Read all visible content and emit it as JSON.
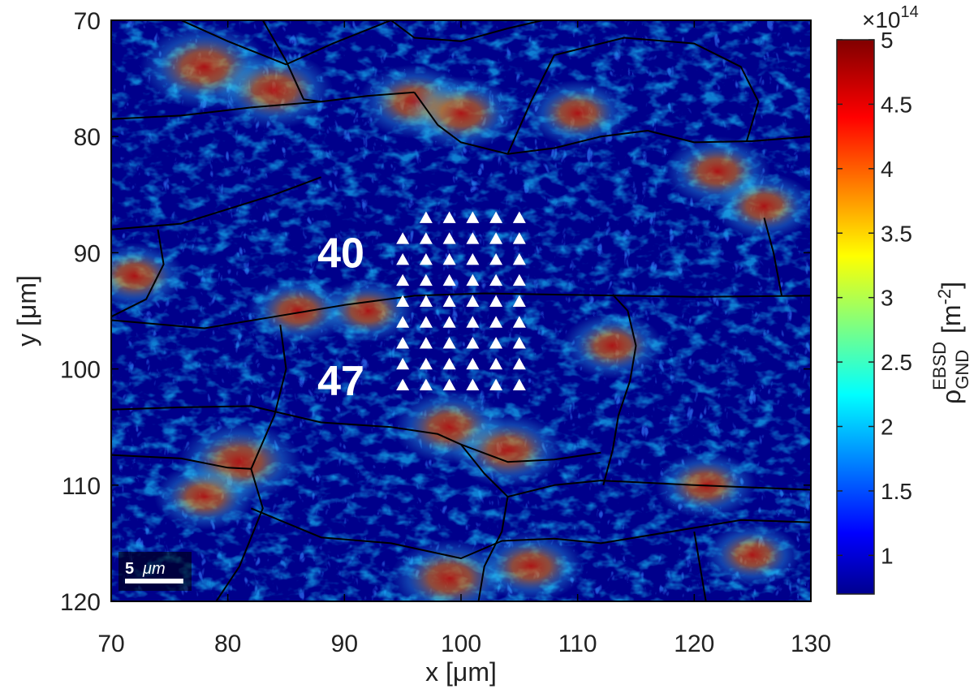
{
  "chart_data": {
    "type": "heatmap",
    "title": "",
    "xlabel": "x [μm]",
    "ylabel": "y [μm]",
    "xlim": [
      70,
      130
    ],
    "ylim": [
      120,
      70
    ],
    "y_axis_reversed": true,
    "xticks": [
      70,
      80,
      90,
      100,
      110,
      120,
      130
    ],
    "yticks": [
      70,
      80,
      90,
      100,
      110,
      120
    ],
    "grid": false,
    "colormap": "jet",
    "colorbar": {
      "label_main": "ρ",
      "label_sub": "GND",
      "label_sup": "EBSD",
      "label_unit": "[m",
      "label_unit_exp": "-2",
      "label_unit_close": "]",
      "multiplier_prefix": "×10",
      "multiplier_exponent": "14",
      "range": [
        0.7,
        5
      ],
      "ticks": [
        "1",
        "1.5",
        "2",
        "2.5",
        "3",
        "3.5",
        "4",
        "4.5",
        "5"
      ],
      "tick_values": [
        1,
        1.5,
        2,
        2.5,
        3,
        3.5,
        4,
        4.5,
        5
      ],
      "position": "right"
    },
    "annotations": [
      {
        "text": "40",
        "x": 89.7,
        "y": 90.0
      },
      {
        "text": "47",
        "x": 89.7,
        "y": 101.0
      }
    ],
    "scale_bar": {
      "text": "5",
      "unit": "μm",
      "length_um": 5
    },
    "indent_markers": {
      "symbol": "triangle",
      "color": "#ffffff",
      "rows": [
        {
          "y": 87.0,
          "x": [
            97,
            99,
            101,
            103,
            105
          ]
        },
        {
          "y": 88.8,
          "x": [
            95,
            97,
            99,
            101,
            103,
            105
          ]
        },
        {
          "y": 90.6,
          "x": [
            95,
            97,
            99,
            101,
            103,
            105
          ]
        },
        {
          "y": 92.4,
          "x": [
            95,
            97,
            99,
            101,
            103,
            105
          ]
        },
        {
          "y": 94.2,
          "x": [
            95,
            97,
            99,
            101,
            103,
            105
          ]
        },
        {
          "y": 96.0,
          "x": [
            95,
            97,
            99,
            101,
            103,
            105
          ]
        },
        {
          "y": 97.8,
          "x": [
            95,
            97,
            99,
            101,
            103,
            105
          ]
        },
        {
          "y": 99.6,
          "x": [
            95,
            97,
            99,
            101,
            103,
            105
          ]
        },
        {
          "y": 101.4,
          "x": [
            95,
            97,
            99,
            101,
            103,
            105
          ]
        }
      ]
    },
    "grain_boundaries": [
      [
        [
          70,
          78.5
        ],
        [
          76,
          78.2
        ],
        [
          82,
          77.5
        ],
        [
          88,
          77
        ],
        [
          92,
          76.5
        ],
        [
          96,
          76.2
        ]
      ],
      [
        [
          76,
          70
        ],
        [
          80,
          71.8
        ],
        [
          85,
          73.8
        ],
        [
          89,
          72
        ],
        [
          94,
          70
        ]
      ],
      [
        [
          83,
          70
        ],
        [
          85,
          73.5
        ],
        [
          86.5,
          76.8
        ],
        [
          88,
          77
        ]
      ],
      [
        [
          94,
          70
        ],
        [
          96,
          71.5
        ],
        [
          100,
          71.8
        ],
        [
          104,
          70.7
        ],
        [
          107,
          70
        ]
      ],
      [
        [
          96,
          76.2
        ],
        [
          98,
          79
        ],
        [
          100,
          80.5
        ],
        [
          104,
          81.5
        ],
        [
          108,
          81
        ],
        [
          112,
          80
        ],
        [
          116,
          79.5
        ],
        [
          120,
          80.5
        ],
        [
          125,
          80.4
        ],
        [
          130,
          80
        ]
      ],
      [
        [
          104,
          81.5
        ],
        [
          106,
          77
        ],
        [
          108,
          73
        ],
        [
          114,
          71.5
        ],
        [
          120,
          72
        ],
        [
          124,
          74
        ],
        [
          125.5,
          77
        ],
        [
          124.5,
          80.4
        ]
      ],
      [
        [
          70,
          88
        ],
        [
          76,
          87.5
        ],
        [
          84,
          85
        ],
        [
          88,
          83.5
        ]
      ],
      [
        [
          74,
          88
        ],
        [
          74.5,
          91
        ],
        [
          73,
          94
        ],
        [
          70,
          95.5
        ]
      ],
      [
        [
          70,
          95.8
        ],
        [
          78,
          96.5
        ],
        [
          84,
          95.5
        ],
        [
          90,
          94.5
        ],
        [
          96,
          93.7
        ],
        [
          102,
          93.5
        ],
        [
          108,
          93.6
        ],
        [
          114,
          93.7
        ],
        [
          120,
          93.8
        ],
        [
          130,
          93.7
        ]
      ],
      [
        [
          113,
          93.6
        ],
        [
          114.3,
          95
        ],
        [
          115,
          98
        ],
        [
          114.5,
          101
        ],
        [
          113.5,
          104
        ],
        [
          113,
          107
        ],
        [
          112.2,
          110
        ]
      ],
      [
        [
          126,
          87
        ],
        [
          126.8,
          90
        ],
        [
          127.5,
          93.7
        ]
      ],
      [
        [
          70,
          103.5
        ],
        [
          76,
          103.3
        ],
        [
          82,
          103.2
        ],
        [
          88,
          104.6
        ],
        [
          94,
          105
        ],
        [
          98,
          105.6
        ],
        [
          100,
          106.5
        ],
        [
          102,
          109
        ],
        [
          104,
          111
        ]
      ],
      [
        [
          70,
          107.4
        ],
        [
          76,
          107.7
        ],
        [
          80,
          108.5
        ],
        [
          82,
          108.6
        ]
      ],
      [
        [
          82,
          108.6
        ],
        [
          84,
          104
        ],
        [
          85,
          100
        ],
        [
          84.5,
          96.2
        ]
      ],
      [
        [
          82,
          108.6
        ],
        [
          83,
          112
        ],
        [
          81,
          117
        ],
        [
          79,
          120
        ]
      ],
      [
        [
          100,
          106.5
        ],
        [
          104,
          108
        ],
        [
          108,
          107.8
        ],
        [
          112,
          107.2
        ]
      ],
      [
        [
          104,
          111
        ],
        [
          108,
          110
        ],
        [
          112,
          109.6
        ],
        [
          120,
          110
        ],
        [
          130,
          110.4
        ]
      ],
      [
        [
          104,
          111
        ],
        [
          103.5,
          114
        ],
        [
          102,
          117
        ],
        [
          101.5,
          120
        ]
      ],
      [
        [
          82,
          112
        ],
        [
          88,
          114.5
        ],
        [
          94,
          115
        ],
        [
          100,
          116.3
        ],
        [
          103.5,
          114.8
        ],
        [
          108,
          114.6
        ],
        [
          112,
          115
        ],
        [
          118,
          114
        ],
        [
          124,
          113
        ],
        [
          130,
          113.2
        ]
      ],
      [
        [
          120,
          114
        ],
        [
          120.5,
          117
        ],
        [
          121,
          120
        ]
      ]
    ],
    "hotspots": [
      {
        "x": 78,
        "y": 74,
        "level": 0.85
      },
      {
        "x": 84,
        "y": 76,
        "level": 0.75
      },
      {
        "x": 96,
        "y": 77,
        "level": 0.7
      },
      {
        "x": 100,
        "y": 78,
        "level": 0.7
      },
      {
        "x": 110,
        "y": 78,
        "level": 0.6
      },
      {
        "x": 122,
        "y": 83,
        "level": 0.65
      },
      {
        "x": 126,
        "y": 86,
        "level": 0.6
      },
      {
        "x": 72,
        "y": 92,
        "level": 0.6
      },
      {
        "x": 86,
        "y": 95,
        "level": 0.6
      },
      {
        "x": 92,
        "y": 95,
        "level": 0.55
      },
      {
        "x": 99,
        "y": 105,
        "level": 0.7
      },
      {
        "x": 104,
        "y": 107,
        "level": 0.7
      },
      {
        "x": 113,
        "y": 98,
        "level": 0.6
      },
      {
        "x": 81,
        "y": 108,
        "level": 0.8
      },
      {
        "x": 78,
        "y": 111,
        "level": 0.6
      },
      {
        "x": 99,
        "y": 118,
        "level": 0.75
      },
      {
        "x": 106,
        "y": 117,
        "level": 0.65
      },
      {
        "x": 121,
        "y": 110,
        "level": 0.6
      },
      {
        "x": 125,
        "y": 116,
        "level": 0.55
      }
    ]
  }
}
